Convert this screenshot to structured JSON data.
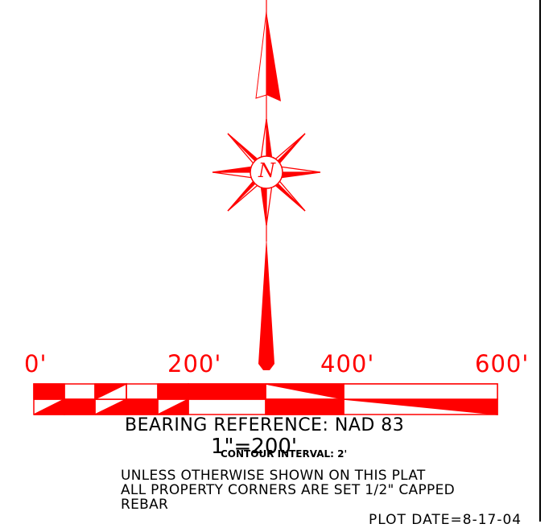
{
  "scale_bar": {
    "ticks": [
      "0'",
      "200'",
      "400'",
      "600'"
    ],
    "color": "#ff0000"
  },
  "north_arrow": {
    "letter": "N",
    "icon": "north-arrow-compass-rose",
    "color": "#ff0000"
  },
  "text": {
    "bearing_reference": "BEARING REFERENCE: NAD 83",
    "scale": "1\"=200'",
    "contour_interval": "CONTOUR INTERVAL: 2'",
    "note_line1": "UNLESS OTHERWISE SHOWN ON THIS PLAT",
    "note_line2": "ALL PROPERTY CORNERS ARE SET 1/2\" CAPPED",
    "note_line3": "REBAR",
    "plot_date": "PLOT DATE=8-17-04"
  }
}
